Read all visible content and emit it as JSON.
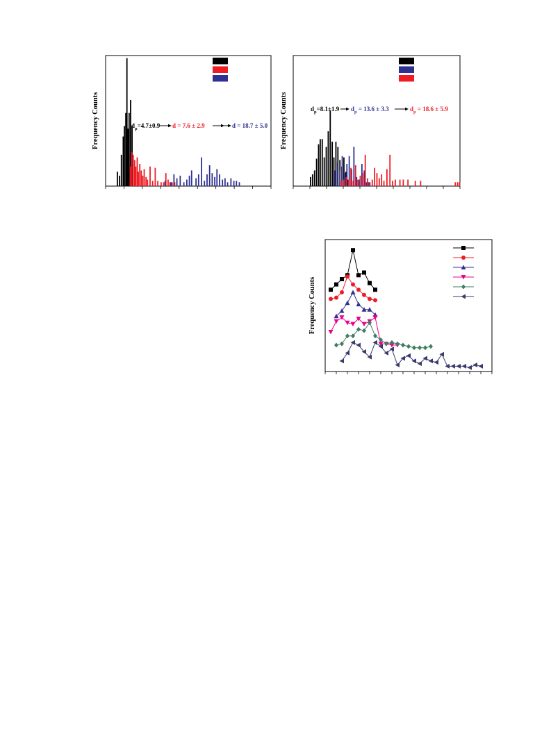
{
  "colors": {
    "black": "#000000",
    "red": "#ee1c24",
    "blue": "#2e3192",
    "magenta": "#ec008c",
    "green": "#3e7d5f",
    "navy": "#3a3a6e"
  },
  "chart_data": [
    {
      "type": "bar",
      "ylabel": "Frequency  Counts",
      "xlim": [
        0,
        45
      ],
      "ylim": [
        0,
        100
      ],
      "legend": {
        "placement": "top-right",
        "entries": [
          {
            "color": "black"
          },
          {
            "color": "red"
          },
          {
            "color": "blue"
          }
        ]
      },
      "annotation": {
        "p1": {
          "d": "d",
          "sub": "p",
          "text": "=4.7±0.9"
        },
        "p2": {
          "text": "d  = 7.6 ± 2.9"
        },
        "p3": {
          "text": "d  = 18.7 ± 5.0"
        }
      },
      "series": [
        {
          "color": "black",
          "x": [
            3.2,
            3.8,
            4.3,
            4.8,
            5.1,
            5.5,
            5.8,
            6.1,
            6.4,
            6.8,
            7.2
          ],
          "values": [
            11,
            8,
            24,
            38,
            46,
            56,
            98,
            44,
            56,
            66,
            46
          ]
        },
        {
          "color": "red",
          "x": [
            6.7,
            7.1,
            7.5,
            7.9,
            8.2,
            8.6,
            8.9,
            9.3,
            9.7,
            10.1,
            10.5,
            11.0,
            11.4,
            12.1,
            12.8,
            13.5,
            14.2,
            15.1,
            15.8,
            16.4,
            17.0,
            17.5,
            18.1,
            18.8,
            19.4
          ],
          "values": [
            15,
            26,
            24,
            20,
            15,
            22,
            11,
            17,
            12,
            8,
            13,
            7,
            5,
            15,
            4,
            14,
            4,
            3,
            3,
            10,
            5,
            3,
            3,
            3,
            4
          ]
        },
        {
          "color": "blue",
          "x": [
            16.2,
            17.8,
            18.6,
            19.4,
            20.3,
            21.3,
            22.1,
            22.8,
            23.4,
            24.6,
            25.3,
            26.1,
            26.9,
            27.6,
            28.3,
            29.0,
            29.7,
            30.3,
            31.0,
            31.8,
            32.5,
            33.2,
            34.1,
            34.9,
            35.6,
            36.4
          ],
          "values": [
            4,
            3,
            9,
            6,
            8,
            3,
            5,
            8,
            12,
            6,
            9,
            22,
            4,
            9,
            16,
            10,
            7,
            13,
            9,
            5,
            6,
            3,
            6,
            4,
            4,
            3
          ]
        }
      ]
    },
    {
      "type": "bar",
      "ylabel": "Frequency  Counts",
      "xlim": [
        0,
        50
      ],
      "ylim": [
        0,
        100
      ],
      "legend": {
        "placement": "top-right",
        "entries": [
          {
            "color": "black"
          },
          {
            "color": "blue"
          },
          {
            "color": "red"
          }
        ]
      },
      "annotation": {
        "p1": {
          "d": "d",
          "sub": "p",
          "text": "=8.1±1.9"
        },
        "p2": {
          "d": "d",
          "sub": "p",
          "text": " = 13.6 ± 3.3"
        },
        "p3": {
          "d": "d",
          "sub": "p",
          "text": " = 18.6 ± 5.9"
        }
      },
      "series": [
        {
          "color": "black",
          "x": [
            5.2,
            5.8,
            6.4,
            7.0,
            7.6,
            8.1,
            8.7,
            9.3,
            9.9,
            10.5,
            11.1,
            11.7,
            12.2,
            12.8,
            13.4,
            14.0,
            14.6,
            15.2,
            15.8,
            16.3
          ],
          "values": [
            7,
            9,
            12,
            21,
            32,
            36,
            36,
            22,
            30,
            42,
            58,
            34,
            22,
            34,
            30,
            20,
            15,
            22,
            11,
            5
          ]
        },
        {
          "color": "blue",
          "x": [
            12.6,
            13.3,
            14.0,
            14.7,
            15.4,
            16.1,
            16.8,
            17.5,
            18.2,
            19.0,
            19.8,
            20.6,
            21.3,
            22.0,
            22.7
          ],
          "values": [
            12,
            18,
            12,
            23,
            10,
            17,
            23,
            13,
            30,
            7,
            5,
            17,
            12,
            3,
            3
          ]
        },
        {
          "color": "red",
          "x": [
            14.5,
            15.2,
            15.9,
            16.6,
            17.3,
            18.0,
            18.7,
            19.4,
            20.1,
            20.8,
            21.6,
            22.3,
            23.0,
            23.7,
            24.4,
            25.1,
            25.8,
            26.5,
            27.2,
            28.1,
            29.0,
            29.8,
            30.6,
            32.0,
            33.0,
            34.4,
            36.6,
            38.2,
            48.6,
            49.3,
            49.9
          ],
          "values": [
            4,
            5,
            7,
            5,
            14,
            4,
            16,
            5,
            8,
            10,
            24,
            6,
            3,
            5,
            14,
            10,
            6,
            9,
            4,
            13,
            24,
            4,
            5,
            5,
            5,
            5,
            4,
            4,
            3,
            3,
            3
          ]
        }
      ]
    },
    {
      "type": "line",
      "ylabel": "Frequency Counts",
      "xlim": [
        0,
        30
      ],
      "ylim": [
        0,
        100
      ],
      "legend": {
        "placement": "top-right",
        "entries": [
          {
            "color": "black",
            "marker": "square"
          },
          {
            "color": "red",
            "marker": "circle"
          },
          {
            "color": "blue",
            "marker": "triangle-up"
          },
          {
            "color": "magenta",
            "marker": "triangle-down"
          },
          {
            "color": "green",
            "marker": "diamond"
          },
          {
            "color": "navy",
            "marker": "triangle-left"
          }
        ]
      },
      "series": [
        {
          "color": "black",
          "marker": "square",
          "x": [
            1,
            2,
            3,
            4,
            5,
            6,
            7,
            8,
            9
          ],
          "values": [
            62,
            66,
            70,
            73,
            92,
            73,
            75,
            67,
            62
          ]
        },
        {
          "color": "red",
          "marker": "circle",
          "x": [
            1,
            2,
            3,
            4,
            5,
            6,
            7,
            8,
            9
          ],
          "values": [
            55,
            56,
            60,
            72,
            66,
            62,
            58,
            55,
            54
          ]
        },
        {
          "color": "blue",
          "marker": "triangle-up",
          "x": [
            2,
            3,
            4,
            5,
            6,
            7,
            8,
            9
          ],
          "values": [
            42,
            46,
            52,
            60,
            51,
            47,
            47,
            43
          ]
        },
        {
          "color": "magenta",
          "marker": "triangle-down",
          "x": [
            1,
            2,
            3,
            4,
            5,
            6,
            7,
            8,
            9,
            10,
            11,
            12,
            13
          ],
          "values": [
            30,
            38,
            41,
            37,
            36,
            40,
            36,
            38,
            41,
            21,
            21,
            20,
            20
          ]
        },
        {
          "color": "green",
          "marker": "diamond",
          "x": [
            2,
            3,
            4,
            5,
            6,
            7,
            8,
            9,
            10,
            11,
            12,
            13,
            14,
            15,
            16,
            17,
            18,
            19
          ],
          "values": [
            20,
            21,
            27,
            27,
            32,
            31,
            37,
            27,
            24,
            21,
            22,
            21,
            20,
            19,
            18,
            18,
            18,
            19
          ]
        },
        {
          "color": "navy",
          "marker": "triangle-left",
          "x": [
            3,
            4,
            5,
            6,
            7,
            8,
            9,
            10,
            11,
            12,
            13,
            14,
            15,
            16,
            17,
            18,
            19,
            20,
            21,
            22,
            23,
            24,
            25,
            26,
            27,
            28
          ],
          "values": [
            8,
            14,
            22,
            20,
            15,
            11,
            22,
            19,
            14,
            17,
            5,
            10,
            12,
            8,
            6,
            10,
            8,
            7,
            13,
            4,
            4,
            4,
            4,
            3,
            5,
            4
          ]
        }
      ]
    }
  ]
}
